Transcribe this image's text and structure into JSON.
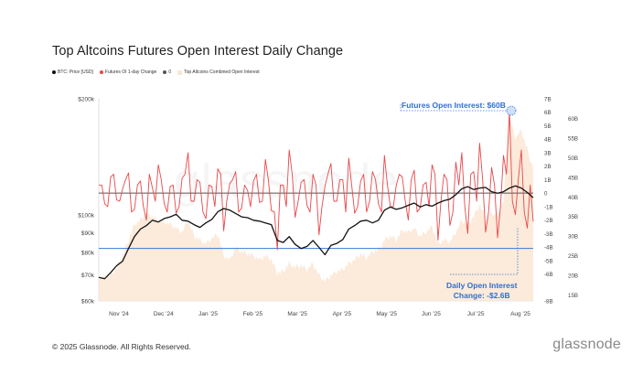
{
  "title": "Top Altcoins Futures Open Interest Daily Change",
  "legend": [
    {
      "label": "BTC: Price [USD]",
      "color": "#111111",
      "shape": "dot"
    },
    {
      "label": "Futures OI 1-day Change",
      "color": "#e8474a",
      "shape": "dot"
    },
    {
      "label": "0",
      "color": "#555555",
      "shape": "dot"
    },
    {
      "label": "Top Altcoins Combined Open Interest",
      "color": "#fbe6d4",
      "shape": "square"
    }
  ],
  "watermark": "glassnode",
  "footer": "© 2025 Glassnode. All Rights Reserved.",
  "brand": "glassnode",
  "annotations": {
    "oi_label": "Futures Open Interest: $60B",
    "change_label_line1": "Daily Open Interest",
    "change_label_line2": "Change: -$2.6B"
  },
  "colors": {
    "price": "#111111",
    "change": "#e8474a",
    "oi_area": "#fbe6d4",
    "zero_line": "#555555",
    "blue": "#3a78d4"
  },
  "chart_data": {
    "type": "line",
    "title": "Top Altcoins Futures Open Interest Daily Change",
    "x_ticks": [
      "Nov '24",
      "Dec '24",
      "Jan '25",
      "Feb '25",
      "Mar '25",
      "Apr '25",
      "May '25",
      "Jun '25",
      "Jul '25",
      "Aug '25"
    ],
    "left_axis": {
      "ticks": [
        "$60k",
        "$70k",
        "$80k",
        "$90k",
        "$100k",
        "$200k"
      ],
      "scale": "log",
      "range": [
        60000,
        200000
      ]
    },
    "right_axis_1": {
      "ticks": [
        "-8B",
        "-6B",
        "-5B",
        "-4B",
        "-3B",
        "-2B",
        "-1B",
        "0",
        "1B",
        "2B",
        "3B",
        "4B",
        "5B",
        "6B",
        "7B"
      ],
      "range": [
        -8,
        7
      ]
    },
    "right_axis_2": {
      "ticks": [
        "15B",
        "20B",
        "25B",
        "30B",
        "35B",
        "40B",
        "45B",
        "50B",
        "55B",
        "60B"
      ],
      "range": [
        13.5,
        65
      ]
    },
    "reference_lines": {
      "zero": 0,
      "blue_price_level": 82000
    },
    "series": [
      {
        "name": "BTC: Price [USD]",
        "axis": "left",
        "values": [
          69000,
          68500,
          71000,
          74000,
          76000,
          82000,
          88000,
          92000,
          94000,
          97000,
          96000,
          98000,
          99000,
          100500,
          97000,
          96500,
          94500,
          93000,
          95500,
          97500,
          102000,
          104000,
          103000,
          101000,
          99000,
          98500,
          97000,
          96500,
          95500,
          94500,
          86000,
          85000,
          88000,
          84000,
          82000,
          83000,
          86000,
          82500,
          79000,
          83500,
          84500,
          86500,
          92000,
          94000,
          96500,
          97000,
          95500,
          97000,
          103000,
          105000,
          103500,
          104500,
          106000,
          107500,
          105000,
          106500,
          105500,
          107500,
          109000,
          110000,
          113000,
          117000,
          118500,
          116500,
          117500,
          118000,
          115000,
          114000,
          115000,
          117500,
          119000,
          117500,
          114500,
          111000
        ]
      },
      {
        "name": "Futures OI 1-day Change",
        "axis": "right_1",
        "values": [
          0.6,
          -0.8,
          1.2,
          -0.5,
          0.3,
          1.5,
          -1.2,
          0.9,
          -2.0,
          0.4,
          2.1,
          -0.8,
          0.5,
          -1.5,
          1.1,
          3.0,
          -0.6,
          0.8,
          -1.9,
          0.5,
          1.8,
          -2.8,
          0.7,
          1.6,
          -1.1,
          0.2,
          0.9,
          -0.7,
          2.5,
          -1.3,
          -4.2,
          0.6,
          3.2,
          -1.8,
          0.8,
          -0.9,
          1.4,
          -3.1,
          0.5,
          2.2,
          -0.6,
          1.0,
          2.6,
          -1.5,
          0.9,
          -1.4,
          1.6,
          -0.8,
          2.8,
          -1.0,
          0.6,
          1.2,
          -2.0,
          1.7,
          -1.1,
          0.8,
          2.1,
          -3.5,
          1.4,
          -2.4,
          2.3,
          3.0,
          -3.0,
          1.6,
          3.7,
          -2.9,
          1.9,
          -3.3,
          2.8,
          6.1,
          -1.6,
          3.2,
          -2.6,
          -2.1
        ]
      },
      {
        "name": "Top Altcoins Combined Open Interest",
        "axis": "right_2",
        "values": [
          19,
          19.5,
          20,
          22,
          25,
          29,
          33,
          34,
          36,
          35,
          34,
          33.5,
          33,
          32,
          31,
          34,
          30,
          29,
          28,
          29.5,
          30.5,
          25,
          24,
          27,
          26,
          25.5,
          25,
          24,
          25,
          24,
          20.5,
          21,
          23,
          22,
          22.5,
          21.5,
          23,
          20,
          18.5,
          20,
          21,
          21.5,
          23,
          24,
          25.5,
          24.5,
          26,
          26.5,
          29,
          30,
          29,
          31.5,
          31,
          32,
          30,
          31,
          32.5,
          28,
          29,
          28.5,
          31,
          34,
          33,
          35,
          38,
          34,
          36,
          35,
          39,
          60,
          55,
          57,
          52,
          47
        ]
      }
    ]
  }
}
